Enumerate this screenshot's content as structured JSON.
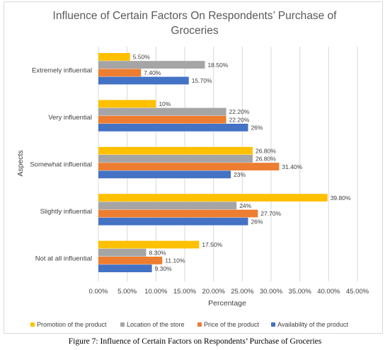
{
  "chart_data": {
    "type": "bar",
    "orientation": "horizontal",
    "title_lines": [
      "Influence of Certain Factors On Respondents’ Purchase of",
      "Groceries"
    ],
    "xlabel": "Percentage",
    "ylabel": "Aspects",
    "xlim": [
      0,
      45
    ],
    "x_ticks": [
      "0.00%",
      "5.00%",
      "10.00%",
      "15.00%",
      "20.00%",
      "25.00%",
      "30.00%",
      "35.00%",
      "40.00%",
      "45.00%"
    ],
    "categories": [
      "Extremely influential",
      "Very influential",
      "Somewhat influential",
      "Slightly influential",
      "Not at all influential"
    ],
    "series": [
      {
        "name": "Promotion of the product",
        "color": "#ffc000",
        "values": [
          5.5,
          10,
          26.8,
          39.8,
          17.5
        ],
        "labels": [
          "5.50%",
          "10%",
          "26.80%",
          "39.80%",
          "17.50%"
        ]
      },
      {
        "name": "Location of the store",
        "color": "#a5a5a5",
        "values": [
          18.5,
          22.2,
          26.8,
          24,
          8.3
        ],
        "labels": [
          "18.50%",
          "22.20%",
          "26.80%",
          "24%",
          "8.30%"
        ]
      },
      {
        "name": "Price of the product",
        "color": "#ed7d31",
        "values": [
          7.4,
          22.2,
          31.4,
          27.7,
          11.1
        ],
        "labels": [
          "7.40%",
          "22.20%",
          "31.40%",
          "27.70%",
          "11.10%"
        ]
      },
      {
        "name": "Availability of the product",
        "color": "#4472c4",
        "values": [
          15.7,
          26,
          23,
          26,
          9.3
        ],
        "labels": [
          "15.70%",
          "26%",
          "23%",
          "26%",
          "9.30%"
        ]
      }
    ],
    "grid": true,
    "legend_position": "bottom"
  },
  "caption": "Figure 7: Influence of Certain Factors on Respondents’ Purchase of Groceries"
}
